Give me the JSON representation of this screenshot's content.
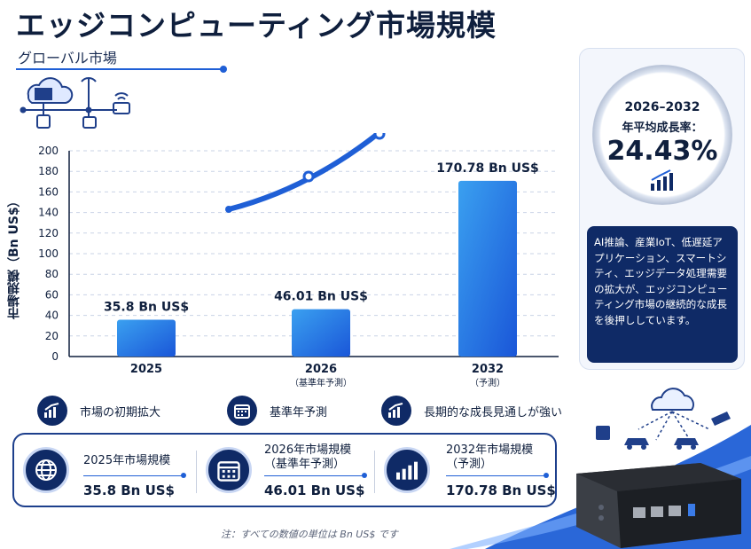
{
  "page": {
    "title": "エッジコンピューティング市場規模",
    "subtitle": "グローバル市場",
    "note": "注：すべての数値の単位は Bn US$ です"
  },
  "colors": {
    "navy": "#0f2a66",
    "accent": "#1f5fd6",
    "bar_light": "#3aa0f0",
    "bar_dark": "#1a56d8"
  },
  "chart_data": {
    "type": "bar",
    "ylabel": "市場規模（Bn US$）",
    "ylim": [
      0,
      200
    ],
    "yticks": [
      0,
      20,
      40,
      60,
      80,
      100,
      120,
      140,
      160,
      180,
      200
    ],
    "grid": true,
    "categories": [
      "2025",
      "2026",
      "2032"
    ],
    "category_sublabels": [
      "",
      "（基準年予測）",
      "（予測）"
    ],
    "values": [
      35.8,
      46.01,
      170.78
    ],
    "data_labels": [
      "35.8 Bn US$",
      "46.01 Bn US$",
      "170.78 Bn US$"
    ]
  },
  "legend": [
    {
      "icon": "growth-chart-icon",
      "label": "市場の初期拡大"
    },
    {
      "icon": "calendar-icon",
      "label": "基準年予測"
    },
    {
      "icon": "growth-chart-icon",
      "label": "長期的な成長見通しが強い"
    }
  ],
  "summary": [
    {
      "icon": "globe-icon",
      "label": "2025年市場規模",
      "sublabel": "",
      "value": "35.8 Bn US$"
    },
    {
      "icon": "calendar-icon",
      "label": "2026年市場規模",
      "sublabel": "（基準年予測）",
      "value": "46.01 Bn US$"
    },
    {
      "icon": "growth-chart-icon",
      "label": "2032年市場規模",
      "sublabel": "（予測）",
      "value": "170.78 Bn US$"
    }
  ],
  "cagr": {
    "period": "2026–2032",
    "label": "年平均成長率：",
    "value": "24.43%"
  },
  "description": "AI推論、産業IoT、低遅延アプリケーション、スマートシティ、エッジデータ処理需要の拡大が、エッジコンピューティング市場の継続的な成長を後押ししています。"
}
